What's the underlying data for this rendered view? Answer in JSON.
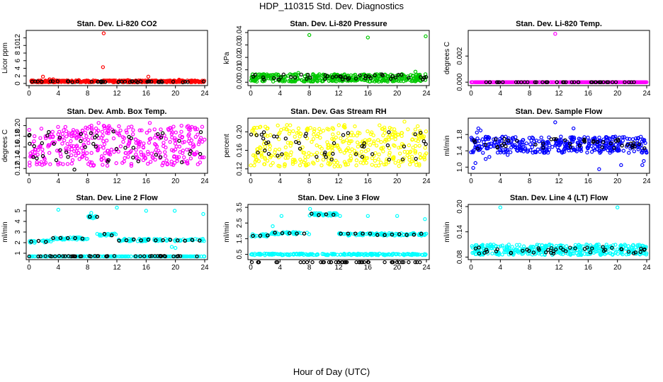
{
  "figure": {
    "title": "HDP_110315  Std. Dev. Diagnostics",
    "xlabel": "Hour of Day (UTC)"
  },
  "chart_data": [
    {
      "type": "scatter",
      "title": "Stan. Dev. Li-820 CO2",
      "xlabel": "",
      "ylabel": "Licor ppm",
      "xlim": [
        0,
        24
      ],
      "ylim": [
        0,
        13.4
      ],
      "xticks": [
        0,
        4,
        8,
        12,
        16,
        20,
        24
      ],
      "yticks": [
        0,
        2,
        4,
        6,
        8,
        10,
        12
      ],
      "series": [
        {
          "name": "main",
          "color": "#ff0000",
          "band": [
            0.3,
            0.8
          ],
          "outliers": [
            [
              1.9,
              1.8
            ],
            [
              2.8,
              1.1
            ],
            [
              3.3,
              1.1
            ],
            [
              10.2,
              13.2
            ],
            [
              10.1,
              4.3
            ],
            [
              16.3,
              1.8
            ],
            [
              20.5,
              1.0
            ],
            [
              13.5,
              0.9
            ],
            [
              6.8,
              0.9
            ]
          ]
        },
        {
          "name": "hourly",
          "color": "#000000",
          "band": [
            0.3,
            0.6
          ],
          "outliers": []
        }
      ]
    },
    {
      "type": "scatter",
      "title": "Stan. Dev. Li-820 Pressure",
      "xlabel": "",
      "ylabel": "kPa",
      "xlim": [
        0,
        24
      ],
      "ylim": [
        -0.001,
        0.04
      ],
      "xticks": [
        0,
        4,
        8,
        12,
        16,
        20,
        24
      ],
      "yticks": [
        0.0,
        0.01,
        0.02,
        0.03,
        0.04
      ],
      "ytick_labels": [
        "0.00",
        "0.01",
        "0.02",
        "0.03",
        "0.04"
      ],
      "series": [
        {
          "name": "main",
          "color": "#00c800",
          "band": [
            0.0005,
            0.0065
          ],
          "outliers": [
            [
              8.0,
              0.038
            ],
            [
              16.0,
              0.036
            ],
            [
              23.9,
              0.037
            ],
            [
              22.5,
              0.0085
            ],
            [
              6.5,
              0.0075
            ]
          ]
        },
        {
          "name": "hourly",
          "color": "#000000",
          "band": [
            0.002,
            0.0065
          ],
          "outliers": []
        }
      ]
    },
    {
      "type": "scatter",
      "title": "Stan. Dev. Li-820 Temp.",
      "xlabel": "",
      "ylabel": "degrees C",
      "xlim": [
        0,
        24
      ],
      "ylim": [
        -0.0001,
        0.0038
      ],
      "xticks": [
        0,
        4,
        8,
        12,
        16,
        20,
        24
      ],
      "yticks": [
        0.0,
        0.002
      ],
      "ytick_labels": [
        "0.000",
        "0.002"
      ],
      "series": [
        {
          "name": "main",
          "color": "#ff00ff",
          "band": [
            0,
            0
          ],
          "outliers": [
            [
              11.5,
              0.0037
            ]
          ]
        },
        {
          "name": "hourly",
          "color": "#000000",
          "band": [
            0,
            0
          ],
          "outliers": []
        }
      ]
    },
    {
      "type": "scatter",
      "title": "Stan. Dev. Amb. Box Temp.",
      "xlabel": "",
      "ylabel": "degrees C",
      "xlim": [
        0,
        24
      ],
      "ylim": [
        0.115,
        0.21
      ],
      "xticks": [
        0,
        4,
        8,
        12,
        16,
        20,
        24
      ],
      "yticks": [
        0.12,
        0.14,
        0.16,
        0.18,
        0.2
      ],
      "ytick_labels": [
        "0.12",
        "0.14",
        "0.16",
        "0.18",
        "0.20"
      ],
      "series": [
        {
          "name": "main",
          "color": "#ff00ff",
          "band": [
            0.125,
            0.2
          ],
          "outliers": [
            [
              9.5,
              0.205
            ],
            [
              16.5,
              0.205
            ]
          ]
        },
        {
          "name": "hourly",
          "color": "#000000",
          "band": [
            0.13,
            0.19
          ],
          "outliers": [
            [
              6.2,
              0.118
            ]
          ]
        }
      ]
    },
    {
      "type": "scatter",
      "title": "Stan. Dev. Gas Stream RH",
      "xlabel": "",
      "ylabel": "percent",
      "xlim": [
        0,
        24
      ],
      "ylim": [
        0.115,
        0.225
      ],
      "xticks": [
        0,
        4,
        8,
        12,
        16,
        20,
        24
      ],
      "yticks": [
        0.12,
        0.16,
        0.2
      ],
      "ytick_labels": [
        "0.12",
        "0.16",
        "0.20"
      ],
      "series": [
        {
          "name": "main",
          "color": "#ffff00",
          "band": [
            0.125,
            0.215
          ],
          "outliers": [
            [
              21.0,
              0.222
            ]
          ]
        },
        {
          "name": "hourly",
          "color": "#000000",
          "band": [
            0.14,
            0.2
          ],
          "outliers": []
        }
      ]
    },
    {
      "type": "scatter",
      "title": "Stan. Dev. Sample Flow",
      "xlabel": "",
      "ylabel": "ml/min",
      "xlim": [
        0,
        24
      ],
      "ylim": [
        0.9,
        2.15
      ],
      "xticks": [
        0,
        4,
        8,
        12,
        16,
        20,
        24
      ],
      "yticks": [
        1.0,
        1.4,
        1.8
      ],
      "ytick_labels": [
        "1.0",
        "1.4",
        "1.8"
      ],
      "series": [
        {
          "name": "main",
          "color": "#0000ff",
          "band": [
            1.35,
            1.75
          ],
          "outliers": [
            [
              0.3,
              0.98
            ],
            [
              0.6,
              1.1
            ],
            [
              1.0,
              1.95
            ],
            [
              1.3,
              1.9
            ],
            [
              2.0,
              1.2
            ],
            [
              2.5,
              1.25
            ],
            [
              11.5,
              2.1
            ],
            [
              14.0,
              1.95
            ],
            [
              17.5,
              0.95
            ],
            [
              20.5,
              1.05
            ],
            [
              23.4,
              1.05
            ],
            [
              23.6,
              1.15
            ],
            [
              0.8,
              1.85
            ],
            [
              5.0,
              1.3
            ]
          ]
        },
        {
          "name": "hourly",
          "color": "#000000",
          "band": [
            1.45,
            1.7
          ],
          "outliers": []
        }
      ]
    },
    {
      "type": "scatter",
      "title": "Stan. Dev. Line 2 Flow",
      "xlabel": "",
      "ylabel": "ml/min",
      "xlim": [
        0,
        24
      ],
      "ylim": [
        0.6,
        5.4
      ],
      "xticks": [
        0,
        4,
        8,
        12,
        16,
        20,
        24
      ],
      "yticks": [
        1,
        2,
        3,
        4,
        5
      ],
      "segments": [
        {
          "x0": 0,
          "x1": 3,
          "y": 2.1
        },
        {
          "x0": 3,
          "x1": 8,
          "y": 2.4
        },
        {
          "x0": 8,
          "x1": 9.2,
          "y": 4.4
        },
        {
          "x0": 9.2,
          "x1": 12,
          "y": 2.75
        },
        {
          "x0": 12,
          "x1": 24,
          "y": 2.25
        }
      ],
      "series": [
        {
          "name": "main",
          "color": "#00ffff",
          "band": [
            0.7,
            0.7
          ],
          "outliers": [
            [
              4.0,
              5.1
            ],
            [
              12.0,
              5.3
            ],
            [
              16.0,
              5.0
            ],
            [
              19.9,
              5.0
            ],
            [
              23.8,
              4.7
            ],
            [
              8.5,
              4.8
            ],
            [
              19.5,
              1.6
            ],
            [
              20.0,
              1.5
            ]
          ]
        },
        {
          "name": "hourly",
          "color": "#000000",
          "band": [
            0.7,
            0.75
          ],
          "outliers": []
        }
      ]
    },
    {
      "type": "scatter",
      "title": "Stan. Dev. Line 3 Flow",
      "xlabel": "",
      "ylabel": "ml/min",
      "xlim": [
        0,
        24
      ],
      "ylim": [
        0.3,
        3.55
      ],
      "xticks": [
        0,
        4,
        8,
        12,
        16,
        20,
        24
      ],
      "yticks": [
        0.5,
        1.5,
        2.5,
        3.5
      ],
      "segments": [
        {
          "x0": 0,
          "x1": 2.5,
          "y": 1.72
        },
        {
          "x0": 2.5,
          "x1": 8,
          "y": 1.85
        },
        {
          "x0": 8,
          "x1": 12,
          "y": 3.05
        },
        {
          "x0": 12,
          "x1": 24,
          "y": 1.78
        }
      ],
      "series": [
        {
          "name": "main",
          "color": "#00ffff",
          "band": [
            0.45,
            0.55
          ],
          "outliers": [
            [
              3.0,
              2.3
            ],
            [
              4.2,
              2.95
            ],
            [
              12.2,
              2.95
            ],
            [
              16.0,
              2.95
            ],
            [
              20.0,
              2.95
            ],
            [
              23.8,
              2.75
            ],
            [
              8.1,
              3.4
            ]
          ]
        },
        {
          "name": "hourly",
          "color": "#000000",
          "band": [
            0,
            0
          ],
          "outliers": []
        }
      ]
    },
    {
      "type": "scatter",
      "title": "Stan. Dev. Line 4 (LT) Flow",
      "xlabel": "",
      "ylabel": "ml/min",
      "xlim": [
        0,
        24
      ],
      "ylim": [
        0.079,
        0.2
      ],
      "xticks": [
        0,
        4,
        8,
        12,
        16,
        20,
        24
      ],
      "yticks": [
        0.08,
        0.14,
        0.2
      ],
      "ytick_labels": [
        "0.08",
        "0.14",
        "0.20"
      ],
      "series": [
        {
          "name": "main",
          "color": "#00ffff",
          "band": [
            0.085,
            0.11
          ],
          "outliers": [
            [
              4.0,
              0.198
            ],
            [
              20.0,
              0.198
            ],
            [
              0.2,
              0.09
            ]
          ]
        },
        {
          "name": "hourly",
          "color": "#000000",
          "band": [
            0.088,
            0.105
          ],
          "outliers": []
        }
      ]
    }
  ]
}
